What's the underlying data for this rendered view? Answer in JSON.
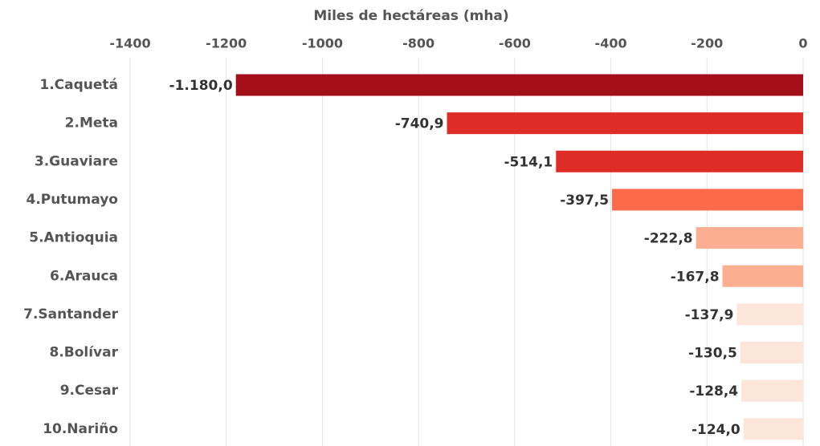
{
  "chart_data": {
    "type": "hbar",
    "x_label": "Miles de hectáreas (mha)",
    "categories": [
      "1.Caquetá",
      "2.Meta",
      "3.Guaviare",
      "4.Putumayo",
      "5.Antioquia",
      "6.Arauca",
      "7.Santander",
      "8.Bolívar",
      "9.Cesar",
      "10.Nariño"
    ],
    "values": [
      -1180.0,
      -740.9,
      -514.1,
      -397.5,
      -222.8,
      -167.8,
      -137.9,
      -130.5,
      -128.4,
      -124.0
    ],
    "value_labels": [
      "-1.180,0",
      "-740,9",
      "-514,1",
      "-397,5",
      "-222,8",
      "-167,8",
      "-137,9",
      "-130,5",
      "-128,4",
      "-124,0"
    ],
    "colors": [
      "#a50f1a",
      "#de2d26",
      "#de2d26",
      "#fb6a4a",
      "#fcae91",
      "#fcae91",
      "#fee5d9",
      "#fee5d9",
      "#fee5d9",
      "#fee5d9"
    ],
    "xlim": [
      -1400,
      0
    ],
    "xticks": [
      -1400,
      -1200,
      -1000,
      -800,
      -600,
      -400,
      -200,
      0
    ],
    "grid": true
  }
}
